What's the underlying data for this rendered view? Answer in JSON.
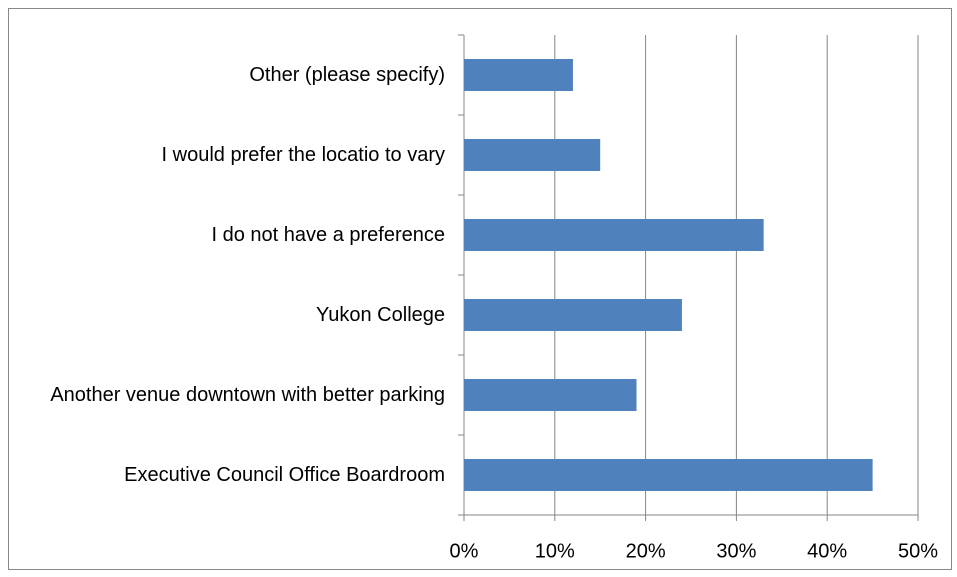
{
  "chart_data": {
    "type": "bar",
    "orientation": "horizontal",
    "categories": [
      "Other (please specify)",
      "I would prefer the locatio to vary",
      "I do not have a preference",
      "Yukon College",
      "Another venue downtown with better parking",
      "Executive Council Office Boardroom"
    ],
    "values": [
      12,
      15,
      33,
      24,
      19,
      45
    ],
    "color": "#4f81bd",
    "xlim": [
      0,
      50
    ],
    "xticks": [
      {
        "value": 0,
        "label": "0%"
      },
      {
        "value": 10,
        "label": "10%"
      },
      {
        "value": 20,
        "label": "20%"
      },
      {
        "value": 30,
        "label": "30%"
      },
      {
        "value": 40,
        "label": "40%"
      },
      {
        "value": 50,
        "label": "50%"
      }
    ],
    "grid": true
  }
}
